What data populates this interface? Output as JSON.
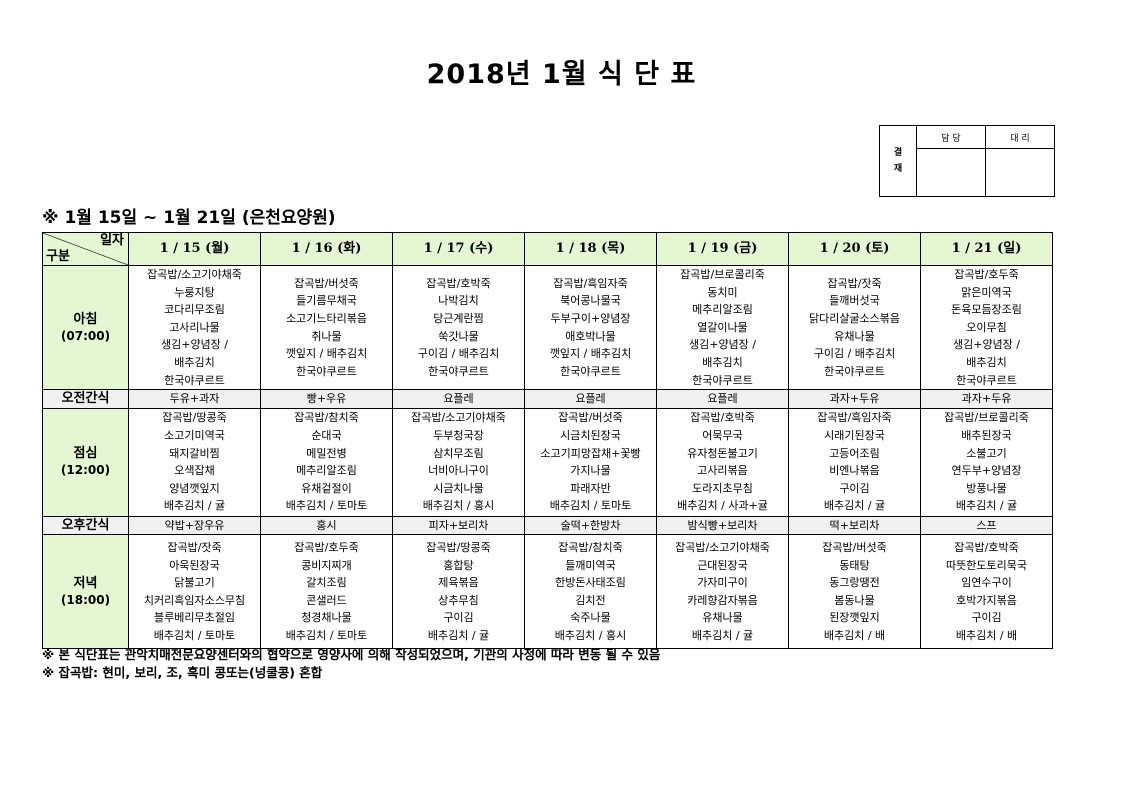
{
  "title": "2018년 1월 식 단 표",
  "approval": {
    "label": "결\n재",
    "col1": "담 당",
    "col2": "대 리"
  },
  "subtitle": "※ 1월 15일 ~ 1월 21일 (은천요양원)",
  "corner": {
    "top": "일자",
    "bottom": "구분"
  },
  "days": [
    "1 / 15 (월)",
    "1 / 16 (화)",
    "1 / 17 (수)",
    "1 / 18 (목)",
    "1 / 19 (금)",
    "1 / 20 (토)",
    "1 / 21 (일)"
  ],
  "rows": [
    {
      "type": "meal",
      "name": "아침",
      "time": "(07:00)",
      "cells": [
        [
          "잡곡밥/소고기야채죽",
          "누룽지탕",
          "코다리무조림",
          "고사리나물",
          "생김+양념장 /",
          "배추김치",
          "한국야쿠르트"
        ],
        [
          "잡곡밥/버섯죽",
          "들기름무채국",
          "소고기느타리볶음",
          "취나물",
          "깻잎지 / 배추김치",
          "한국야쿠르트"
        ],
        [
          "잡곡밥/호박죽",
          "나박김치",
          "당근계란찜",
          "쑥갓나물",
          "구이김 / 배추김치",
          "한국야쿠르트"
        ],
        [
          "잡곡밥/흑임자죽",
          "북어콩나물국",
          "두부구이+양념장",
          "애호박나물",
          "깻잎지 / 배추김치",
          "한국야쿠르트"
        ],
        [
          "잡곡밥/브로콜리죽",
          "동치미",
          "메추리알조림",
          "열갈이나물",
          "생김+양념장 /",
          "배추김치",
          "한국야쿠르트"
        ],
        [
          "잡곡밥/잣죽",
          "들깨버섯국",
          "닭다리살굴소스볶음",
          "유채나물",
          "구이김 / 배추김치",
          "한국야쿠르트"
        ],
        [
          "잡곡밥/호두죽",
          "맑은미역국",
          "돈육모듬장조림",
          "오이무침",
          "생김+양념장 /",
          "배추김치",
          "한국야쿠르트"
        ]
      ]
    },
    {
      "type": "snack",
      "name": "오전간식",
      "cells": [
        "두유+과자",
        "빵+우유",
        "요플레",
        "요플레",
        "요플레",
        "과자+두유",
        "과자+두유"
      ]
    },
    {
      "type": "meal",
      "name": "점심",
      "time": "(12:00)",
      "cells": [
        [
          "잡곡밥/땅콩죽",
          "소고기미역국",
          "돼지갈비찜",
          "오색잡채",
          "양념깻잎지",
          "배추김치 / 귤"
        ],
        [
          "잡곡밥/참치죽",
          "순대국",
          "메밀전병",
          "메추리알조림",
          "유채겉절이",
          "배추김치 / 토마토"
        ],
        [
          "잡곡밥/소고기야채죽",
          "두부청국장",
          "삼치무조림",
          "너비아니구이",
          "시금치나물",
          "배추김치 / 홍시"
        ],
        [
          "잡곡밥/버섯죽",
          "시금치된장국",
          "소고기피망잡채+꽃빵",
          "가지나물",
          "파래자반",
          "배추김치 / 토마토"
        ],
        [
          "잡곡밥/호박죽",
          "어묵무국",
          "유자청돈불고기",
          "고사리볶음",
          "도라지초무침",
          "배추김치 / 사과+귤"
        ],
        [
          "잡곡밥/흑임자죽",
          "시래기된장국",
          "고등어조림",
          "비엔나볶음",
          "구이김",
          "배추김치 / 귤"
        ],
        [
          "잡곡밥/브로콜리죽",
          "배추된장국",
          "소불고기",
          "연두부+양념장",
          "방풍나물",
          "배추김치 / 귤"
        ]
      ]
    },
    {
      "type": "snack",
      "name": "오후간식",
      "cells": [
        "약밥+장우유",
        "홍시",
        "피자+보리차",
        "술떡+한방차",
        "밤식빵+보리차",
        "떡+보리차",
        "스프"
      ]
    },
    {
      "type": "meal",
      "name": "저녁",
      "time": "(18:00)",
      "cells": [
        [
          "잡곡밥/잣죽",
          "아욱된장국",
          "닭불고기",
          "치커리흑임자소스무침",
          "블루베리무초절임",
          "배추김치 / 토마토"
        ],
        [
          "잡곡밥/호두죽",
          "콩비지찌개",
          "갈치조림",
          "콘샐러드",
          "청경채나물",
          "배추김치 / 토마토"
        ],
        [
          "잡곡밥/땅콩죽",
          "홍합탕",
          "제육볶음",
          "상추무침",
          "구이김",
          "배추김치 / 귤"
        ],
        [
          "잡곡밥/참치죽",
          "들깨미역국",
          "한방돈사태조림",
          "김치전",
          "숙주나물",
          "배추김치 / 홍시"
        ],
        [
          "잡곡밥/소고기야채죽",
          "근대된장국",
          "가자미구이",
          "카레향감자볶음",
          "유채나물",
          "배추김치 / 귤"
        ],
        [
          "잡곡밥/버섯죽",
          "동태탕",
          "동그랑땡전",
          "봄동나물",
          "된장깻잎지",
          "배추김치 / 배"
        ],
        [
          "잡곡밥/호박죽",
          "따뜻한도토리묵국",
          "임연수구이",
          "호박가지볶음",
          "구이김",
          "배추김치 / 배"
        ]
      ]
    }
  ],
  "notes": [
    "※ 본 식단표는 관악치매전문요양센터와의 협약으로 영양사에 의해 작성되었으며, 기관의 사정에 따라 변동 될 수 있음",
    "※ 잡곡밥: 현미, 보리, 조, 흑미 콩또는(넝쿨콩) 혼합"
  ],
  "colors": {
    "header_bg": "#e4f6d2",
    "snack_bg": "#f0f0f0"
  }
}
